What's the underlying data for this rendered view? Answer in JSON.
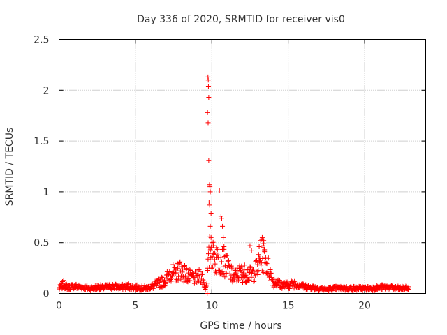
{
  "chart_data": {
    "type": "scatter",
    "title": "Day 336 of 2020, SRMTID for receiver vis0",
    "xlabel": "GPS time / hours",
    "ylabel": "SRMTID / TECUs",
    "xlim": [
      0,
      24
    ],
    "ylim": [
      0,
      2.5
    ],
    "x_ticks": [
      "0",
      "5",
      "10",
      "15",
      "20"
    ],
    "y_ticks": [
      "0",
      "0.5",
      "1",
      "1.5",
      "2",
      "2.5"
    ],
    "grid": true,
    "marker": "+",
    "series": [
      {
        "name": "SRMTID",
        "color": "#ff0000",
        "profile": [
          [
            0.0,
            0.05
          ],
          [
            0.3,
            0.09
          ],
          [
            0.6,
            0.06
          ],
          [
            1.0,
            0.07
          ],
          [
            1.5,
            0.06
          ],
          [
            2.0,
            0.05
          ],
          [
            2.5,
            0.06
          ],
          [
            3.0,
            0.06
          ],
          [
            3.5,
            0.07
          ],
          [
            4.0,
            0.06
          ],
          [
            4.5,
            0.07
          ],
          [
            5.0,
            0.06
          ],
          [
            5.5,
            0.05
          ],
          [
            6.0,
            0.06
          ],
          [
            6.5,
            0.1
          ],
          [
            7.0,
            0.13
          ],
          [
            7.3,
            0.22
          ],
          [
            7.6,
            0.18
          ],
          [
            7.9,
            0.25
          ],
          [
            8.2,
            0.2
          ],
          [
            8.6,
            0.16
          ],
          [
            9.0,
            0.15
          ],
          [
            9.3,
            0.18
          ],
          [
            9.6,
            0.05
          ],
          [
            9.9,
            0.45
          ],
          [
            10.2,
            0.3
          ],
          [
            10.5,
            0.35
          ],
          [
            10.8,
            0.3
          ],
          [
            11.1,
            0.25
          ],
          [
            11.4,
            0.15
          ],
          [
            11.8,
            0.2
          ],
          [
            12.2,
            0.2
          ],
          [
            12.6,
            0.18
          ],
          [
            13.0,
            0.25
          ],
          [
            13.3,
            0.38
          ],
          [
            13.6,
            0.3
          ],
          [
            14.0,
            0.12
          ],
          [
            14.5,
            0.09
          ],
          [
            15.0,
            0.08
          ],
          [
            15.5,
            0.1
          ],
          [
            16.0,
            0.07
          ],
          [
            16.5,
            0.06
          ],
          [
            17.0,
            0.05
          ],
          [
            17.5,
            0.04
          ],
          [
            18.0,
            0.05
          ],
          [
            18.5,
            0.05
          ],
          [
            19.0,
            0.05
          ],
          [
            19.5,
            0.05
          ],
          [
            20.0,
            0.05
          ],
          [
            20.5,
            0.05
          ],
          [
            21.0,
            0.06
          ],
          [
            21.5,
            0.06
          ],
          [
            22.0,
            0.05
          ],
          [
            22.5,
            0.05
          ],
          [
            22.9,
            0.05
          ]
        ],
        "peaks": [
          [
            9.75,
            2.13
          ],
          [
            9.77,
            2.1
          ],
          [
            9.78,
            2.04
          ],
          [
            9.8,
            1.93
          ],
          [
            9.72,
            1.78
          ],
          [
            9.76,
            1.68
          ],
          [
            9.8,
            1.31
          ],
          [
            9.85,
            1.07
          ],
          [
            9.88,
            1.05
          ],
          [
            9.9,
            1.0
          ],
          [
            9.82,
            0.9
          ],
          [
            9.86,
            0.87
          ],
          [
            9.95,
            0.79
          ],
          [
            9.9,
            0.66
          ],
          [
            9.95,
            0.55
          ],
          [
            10.0,
            0.5
          ],
          [
            10.1,
            0.47
          ],
          [
            10.2,
            0.4
          ],
          [
            10.3,
            0.45
          ],
          [
            10.5,
            1.01
          ],
          [
            10.6,
            0.76
          ],
          [
            10.65,
            0.74
          ],
          [
            10.7,
            0.66
          ],
          [
            10.75,
            0.55
          ],
          [
            10.8,
            0.46
          ],
          [
            12.5,
            0.47
          ],
          [
            12.6,
            0.42
          ],
          [
            13.2,
            0.52
          ],
          [
            13.3,
            0.55
          ],
          [
            13.4,
            0.52
          ],
          [
            13.35,
            0.47
          ],
          [
            13.1,
            0.46
          ],
          [
            13.45,
            0.43
          ],
          [
            9.7,
            0.0
          ]
        ]
      }
    ]
  }
}
